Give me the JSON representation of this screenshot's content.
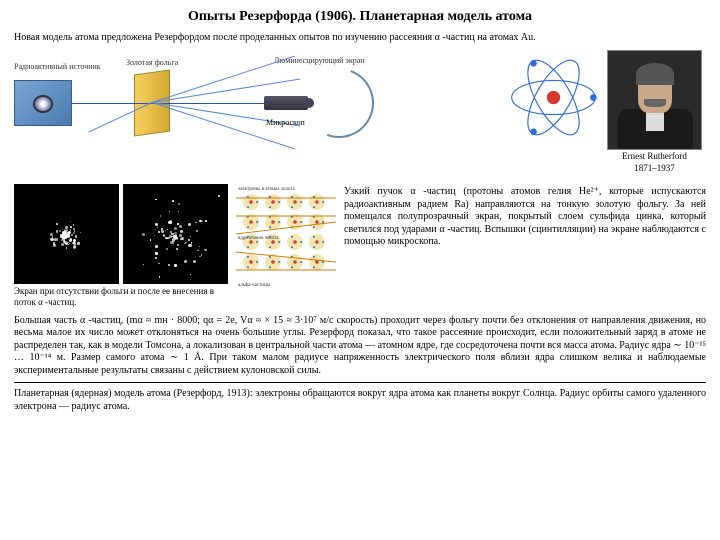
{
  "title": "Опыты Резерфорда (1906). Планетарная модель атома",
  "intro": "Новая модель атома предложена Резерфордом после проделанных опытов по изучению рассеяния α -частиц на атомах Au.",
  "diagram_labels": {
    "source": "Радиоактивный источник",
    "foil": "Золотая фольга",
    "screen": "Люминесцирующий экран",
    "microscope": "Микроскоп"
  },
  "portrait": {
    "name": "Ernest Rutherford",
    "years": "1871–1937"
  },
  "screens_caption": "Экран при отсутствии фольги и после ее внесения в поток α -частиц.",
  "lattice_labels": {
    "top": "электроны в атомах золота",
    "mid": "ядра атомов золота",
    "bottom": "альфа-частицы"
  },
  "description": "Узкий пучок α -частиц (протоны атомов гелия He²⁺, которые испускаются радиоактивным радием Ra) направляются на тонкую золотую фольгу. За ней помещался полупрозрачный экран, покрытый слоем сульфида цинка, который светился под ударами α -частиц. Вспышки (сцинтилляции) на экране наблюдаются с помощью микроскопа.",
  "para1": "Большая часть α -частиц, (mα ≈ mн · 8000;        qα = 2e, Vα ≈       × 15        ≈ 3·10⁷ м/c    скорость) проходит через фольгу почти без отклонения от направления движения, но весьма малое их число может отклоняться на очень большие углы. Резерфорд показал, что такое рассеяние происходит, если положительный заряд в атоме не распределен так, как в модели Томсона, а локализован в центральной части атома — атомном ядре, где сосредоточена почти вся масса атома. Радиус ядра ∼ 10⁻¹⁵ … 10⁻¹⁴ м. Размер самого атома ∼ 1 Å. При таком малом радиусе напряженность электрического поля вблизи ядра слишком велика и наблюдаемые экспериментальные результаты связаны с действием кулоновской силы.",
  "para2": "Планетарная (ядерная) модель атома (Резерфорд, 1913): электроны обращаются вокруг ядра атома как планеты вокруг Солнца. Радиус орбиты самого удаленного электрона — радиус атома.",
  "colors": {
    "electron": "#2e6bd6",
    "nucleus": "#d63a2e",
    "orbit": "#2e6bd6",
    "gold": "#e0b040",
    "bg": "#ffffff"
  },
  "lattice": {
    "rows": 4,
    "cols": 4,
    "atom_color": "#e8d070",
    "electron_color": "#3a6acc",
    "nucleus_color": "#d04030",
    "alpha_lines": 5
  }
}
